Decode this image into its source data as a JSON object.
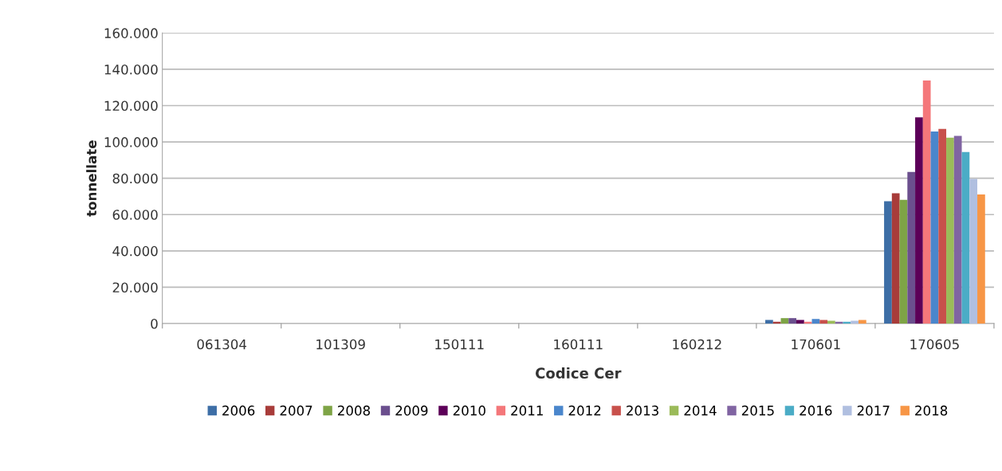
{
  "chart_data": {
    "type": "bar",
    "xlabel": "Codice Cer",
    "ylabel": "tonnellate",
    "categories": [
      "061304",
      "101309",
      "150111",
      "160111",
      "160212",
      "170601",
      "170605"
    ],
    "ylim": [
      0,
      160000
    ],
    "yticks": [
      {
        "value": 0,
        "label": "0"
      },
      {
        "value": 20000,
        "label": "20.000"
      },
      {
        "value": 40000,
        "label": "40.000"
      },
      {
        "value": 60000,
        "label": "60.000"
      },
      {
        "value": 80000,
        "label": "80.000"
      },
      {
        "value": 100000,
        "label": "100.000"
      },
      {
        "value": 120000,
        "label": "120.000"
      },
      {
        "value": 140000,
        "label": "140.000"
      },
      {
        "value": 160000,
        "label": "160.000"
      }
    ],
    "grid": "y",
    "legend": "bottom",
    "series": [
      {
        "name": "2006",
        "color": "#3d6ea6",
        "values": [
          0,
          0,
          0,
          0,
          0,
          2000,
          67400
        ]
      },
      {
        "name": "2007",
        "color": "#a83c3a",
        "values": [
          0,
          0,
          0,
          0,
          0,
          1000,
          71800
        ]
      },
      {
        "name": "2008",
        "color": "#7ea446",
        "values": [
          0,
          0,
          0,
          0,
          0,
          3000,
          68100
        ]
      },
      {
        "name": "2009",
        "color": "#6b4f8e",
        "values": [
          0,
          0,
          0,
          0,
          0,
          3000,
          83500
        ]
      },
      {
        "name": "2010",
        "color": "#5c0058",
        "values": [
          0,
          0,
          0,
          0,
          0,
          2000,
          113500
        ]
      },
      {
        "name": "2011",
        "color": "#f4777a",
        "values": [
          0,
          0,
          0,
          0,
          0,
          1000,
          133800
        ]
      },
      {
        "name": "2012",
        "color": "#4a86cc",
        "values": [
          0,
          0,
          0,
          0,
          0,
          2500,
          105800
        ]
      },
      {
        "name": "2013",
        "color": "#c8504b",
        "values": [
          0,
          0,
          0,
          0,
          0,
          2000,
          107200
        ]
      },
      {
        "name": "2014",
        "color": "#9bbb59",
        "values": [
          0,
          0,
          0,
          0,
          0,
          1500,
          102300
        ]
      },
      {
        "name": "2015",
        "color": "#8064a2",
        "values": [
          0,
          0,
          0,
          0,
          0,
          1000,
          103300
        ]
      },
      {
        "name": "2016",
        "color": "#4bacc6",
        "values": [
          0,
          0,
          0,
          0,
          0,
          1000,
          94500
        ]
      },
      {
        "name": "2017",
        "color": "#b0bfe0",
        "values": [
          0,
          0,
          0,
          0,
          0,
          1500,
          79600
        ]
      },
      {
        "name": "2018",
        "color": "#f79646",
        "values": [
          0,
          0,
          0,
          0,
          0,
          2000,
          71100
        ]
      }
    ]
  }
}
